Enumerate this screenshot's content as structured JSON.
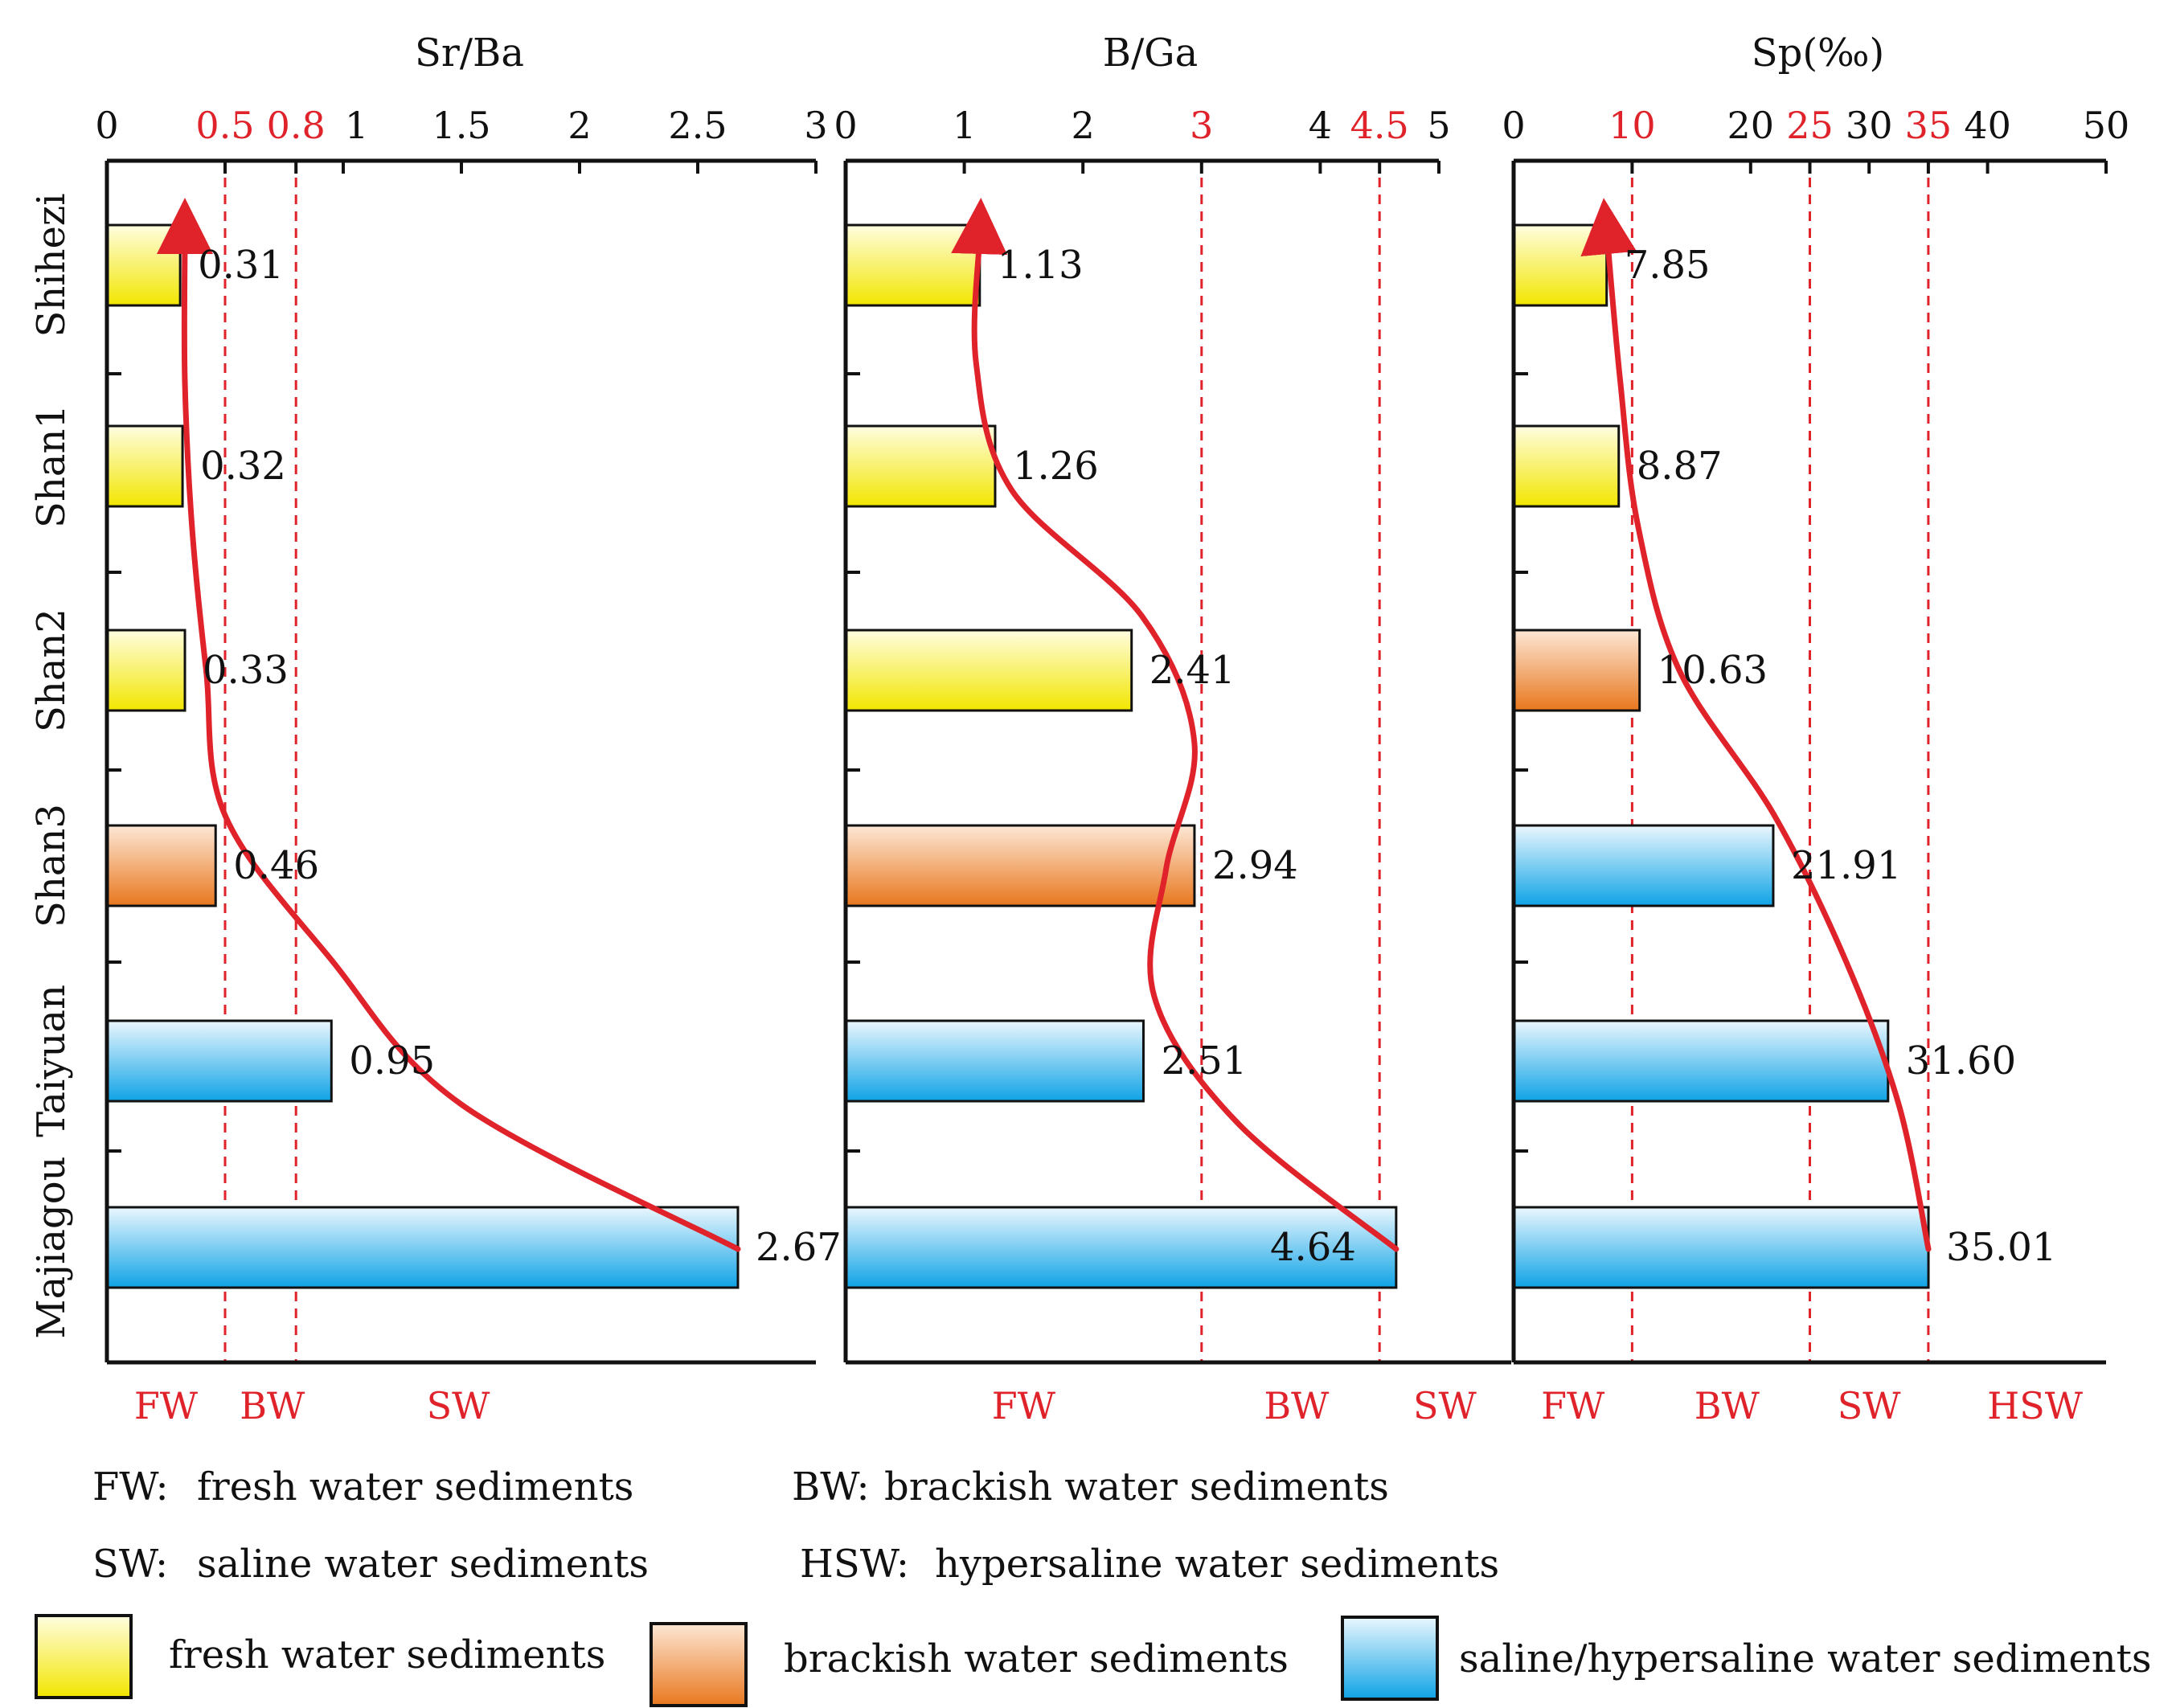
{
  "chart_data": [
    {
      "type": "bar",
      "orientation": "horizontal",
      "title": "Sr/Ba",
      "categories": [
        "Shihezi",
        "Shan1",
        "Shan2",
        "Shan3",
        "Taiyuan",
        "Majiagou"
      ],
      "values": [
        0.31,
        0.32,
        0.33,
        0.46,
        0.95,
        2.67
      ],
      "value_labels": [
        "0.31",
        "0.32",
        "0.33",
        "0.46",
        "0.95",
        "2.67"
      ],
      "bar_classes": [
        "fresh",
        "fresh",
        "fresh",
        "brackish",
        "saline",
        "saline"
      ],
      "xlim": [
        0,
        3
      ],
      "ticks": [
        {
          "v": 0,
          "label": "0",
          "red": false
        },
        {
          "v": 0.5,
          "label": "0.5",
          "red": true
        },
        {
          "v": 0.8,
          "label": "0.8",
          "red": true
        },
        {
          "v": 1,
          "label": "1",
          "red": false
        },
        {
          "v": 1.5,
          "label": "1.5",
          "red": false
        },
        {
          "v": 2,
          "label": "2",
          "red": false
        },
        {
          "v": 2.5,
          "label": "2.5",
          "red": false
        },
        {
          "v": 3,
          "label": "3",
          "red": false
        }
      ],
      "thresholds": [
        0.5,
        0.8
      ],
      "zones": [
        {
          "label": "FW",
          "at": 0.25
        },
        {
          "label": "BW",
          "at": 0.7
        },
        {
          "label": "SW",
          "at": 1.5
        }
      ],
      "trend_x": [
        2.67,
        1.5,
        0.95,
        0.5,
        0.42,
        0.36,
        0.33,
        0.33
      ],
      "grid": false
    },
    {
      "type": "bar",
      "orientation": "horizontal",
      "title": "B/Ga",
      "categories": [
        "Shihezi",
        "Shan1",
        "Shan2",
        "Shan3",
        "Taiyuan",
        "Majiagou"
      ],
      "values": [
        1.13,
        1.26,
        2.41,
        2.94,
        2.51,
        4.64
      ],
      "value_labels": [
        "1.13",
        "1.26",
        "2.41",
        "2.94",
        "2.51",
        "4.64"
      ],
      "bar_classes": [
        "fresh",
        "fresh",
        "fresh",
        "brackish",
        "saline",
        "saline"
      ],
      "xlim": [
        0,
        5
      ],
      "ticks": [
        {
          "v": 0,
          "label": "0",
          "red": false
        },
        {
          "v": 1,
          "label": "1",
          "red": false
        },
        {
          "v": 2,
          "label": "2",
          "red": false
        },
        {
          "v": 3,
          "label": "3",
          "red": true
        },
        {
          "v": 4,
          "label": "4",
          "red": false
        },
        {
          "v": 4.5,
          "label": "4.5",
          "red": true
        },
        {
          "v": 5,
          "label": "5",
          "red": false
        }
      ],
      "thresholds": [
        3,
        4.5
      ],
      "zones": [
        {
          "label": "FW",
          "at": 1.5
        },
        {
          "label": "BW",
          "at": 3.8
        },
        {
          "label": "SW",
          "at": 5.05
        }
      ],
      "trend_x": [
        4.64,
        3.3,
        2.6,
        2.7,
        2.94,
        2.5,
        1.4,
        1.1,
        1.13
      ],
      "grid": false
    },
    {
      "type": "bar",
      "orientation": "horizontal",
      "title": "Sp(‰)",
      "categories": [
        "Shihezi",
        "Shan1",
        "Shan2",
        "Shan3",
        "Taiyuan",
        "Majiagou"
      ],
      "values": [
        7.85,
        8.87,
        10.63,
        21.91,
        31.6,
        35.01
      ],
      "value_labels": [
        "7.85",
        "8.87",
        "10.63",
        "21.91",
        "31.60",
        "35.01"
      ],
      "bar_classes": [
        "fresh",
        "fresh",
        "brackish",
        "saline",
        "saline",
        "saline"
      ],
      "xlim": [
        0,
        50
      ],
      "ticks": [
        {
          "v": 0,
          "label": "0",
          "red": false
        },
        {
          "v": 10,
          "label": "10",
          "red": true
        },
        {
          "v": 20,
          "label": "20",
          "red": false
        },
        {
          "v": 25,
          "label": "25",
          "red": true
        },
        {
          "v": 30,
          "label": "30",
          "red": false
        },
        {
          "v": 35,
          "label": "35",
          "red": true
        },
        {
          "v": 40,
          "label": "40",
          "red": false
        },
        {
          "v": 50,
          "label": "50",
          "red": false
        }
      ],
      "thresholds": [
        10,
        25,
        35
      ],
      "zones": [
        {
          "label": "FW",
          "at": 5
        },
        {
          "label": "BW",
          "at": 18
        },
        {
          "label": "SW",
          "at": 30
        },
        {
          "label": "HSW",
          "at": 44
        }
      ],
      "trend_x": [
        35.01,
        32.5,
        28,
        22,
        14,
        10.5,
        9,
        7.9
      ],
      "grid": false
    }
  ],
  "legend": {
    "abbreviations": [
      {
        "abbr": "FW:",
        "text": "fresh water sediments"
      },
      {
        "abbr": "BW:",
        "text": "brackish water sediments"
      },
      {
        "abbr": "SW:",
        "text": "saline water sediments"
      },
      {
        "abbr": "HSW:",
        "text": "hypersaline water sediments"
      }
    ],
    "swatches": [
      {
        "key": "fresh",
        "label": "fresh water sediments"
      },
      {
        "key": "brackish",
        "label": "brackish water sediments"
      },
      {
        "key": "saline",
        "label": "saline/hypersaline water sediments"
      }
    ]
  },
  "colors": {
    "trend": "#e0222a",
    "threshold": "#e0222a",
    "fresh_top": "#fffde0",
    "fresh_bottom": "#f2e600",
    "brackish_top": "#fde7d5",
    "brackish_bottom": "#e8771e",
    "saline_top": "#eaf7fe",
    "saline_bottom": "#0fa3e6"
  }
}
